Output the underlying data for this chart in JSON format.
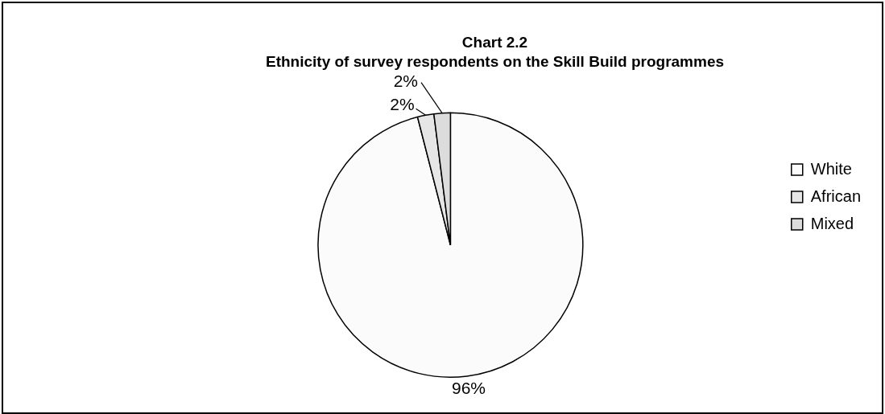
{
  "chart_data": {
    "type": "pie",
    "title": "Chart 2.2",
    "subtitle": "Ethnicity of survey respondents on the Skill Build programmes",
    "categories": [
      "White",
      "African",
      "Mixed"
    ],
    "values": [
      96,
      2,
      2
    ],
    "colors": [
      "#fbfbfb",
      "#e6e6e6",
      "#dcdcdc"
    ],
    "value_labels": [
      "96%",
      "2%",
      "2%"
    ],
    "legend": "right"
  }
}
